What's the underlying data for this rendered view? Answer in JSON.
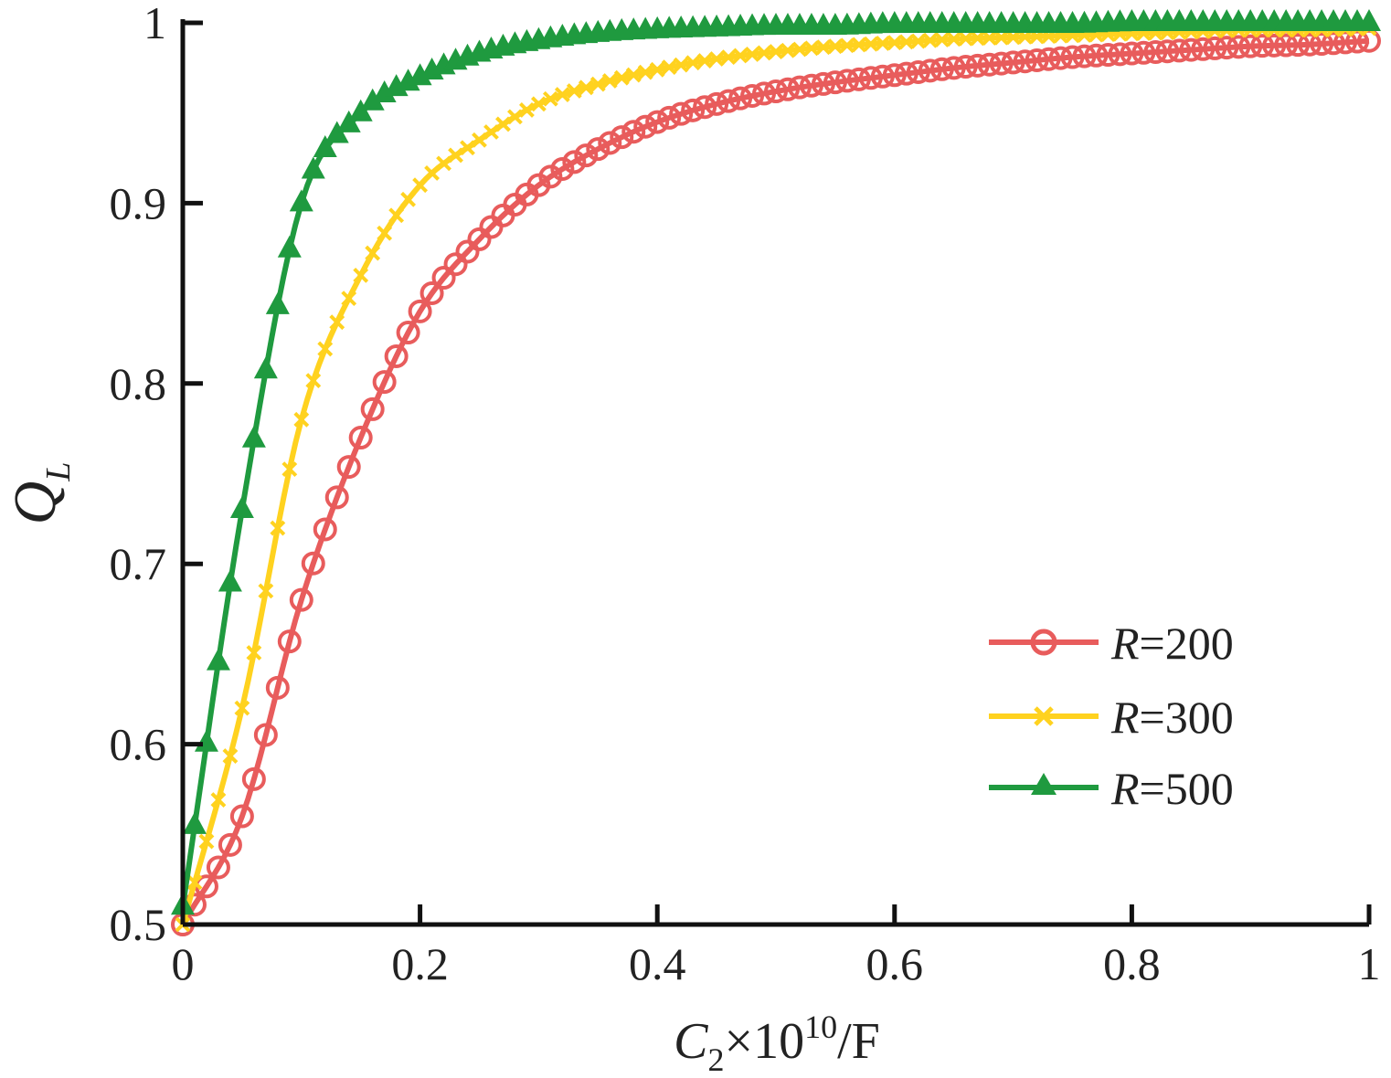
{
  "chart_data": {
    "type": "line",
    "xlabel": {
      "base": "C",
      "sub": "2",
      "mid": "×10",
      "sup": "10",
      "tail": "/F"
    },
    "ylabel": {
      "base": "Q",
      "sub": "L"
    },
    "xlim": [
      0,
      1
    ],
    "ylim": [
      0.5,
      1
    ],
    "xticks": [
      0,
      0.2,
      0.4,
      0.6,
      0.8,
      1
    ],
    "xtick_labels": [
      "0",
      "0.2",
      "0.4",
      "0.6",
      "0.8",
      "1"
    ],
    "yticks": [
      0.5,
      0.6,
      0.7,
      0.8,
      0.9,
      1
    ],
    "ytick_labels": [
      "0.5",
      "0.6",
      "0.7",
      "0.8",
      "0.9",
      "1"
    ],
    "grid": false,
    "legend_position": "lower-right",
    "series": [
      {
        "name": "R=200",
        "label_italic": "R",
        "label_rest": "=200",
        "color": "#e85c5c",
        "marker": "circle",
        "x": [
          0.0,
          0.05,
          0.1,
          0.15,
          0.2,
          0.25,
          0.3,
          0.35,
          0.4,
          0.45,
          0.5,
          0.55,
          0.6,
          0.65,
          0.7,
          0.75,
          0.8,
          0.85,
          0.9,
          0.95,
          1.0
        ],
        "y": [
          0.5,
          0.56,
          0.68,
          0.77,
          0.84,
          0.88,
          0.91,
          0.93,
          0.945,
          0.955,
          0.962,
          0.967,
          0.971,
          0.975,
          0.978,
          0.981,
          0.983,
          0.985,
          0.987,
          0.988,
          0.99
        ]
      },
      {
        "name": "R=300",
        "label_italic": "R",
        "label_rest": "=300",
        "color": "#ffd21f",
        "marker": "x",
        "x": [
          0.0,
          0.05,
          0.1,
          0.15,
          0.2,
          0.25,
          0.3,
          0.35,
          0.4,
          0.45,
          0.5,
          0.55,
          0.6,
          0.65,
          0.7,
          0.75,
          0.8,
          0.85,
          0.9,
          0.95,
          1.0
        ],
        "y": [
          0.5,
          0.62,
          0.78,
          0.86,
          0.91,
          0.935,
          0.955,
          0.966,
          0.974,
          0.98,
          0.984,
          0.987,
          0.989,
          0.991,
          0.992,
          0.993,
          0.994,
          0.995,
          0.996,
          0.996,
          0.997
        ]
      },
      {
        "name": "R=500",
        "label_italic": "R",
        "label_rest": "=500",
        "color": "#1f9a3f",
        "marker": "triangle",
        "x": [
          0.0,
          0.05,
          0.1,
          0.15,
          0.2,
          0.25,
          0.3,
          0.35,
          0.4,
          0.45,
          0.5,
          0.55,
          0.6,
          0.65,
          0.7,
          0.75,
          0.8,
          0.85,
          0.9,
          0.95,
          1.0
        ],
        "y": [
          0.51,
          0.73,
          0.9,
          0.95,
          0.97,
          0.983,
          0.99,
          0.994,
          0.996,
          0.997,
          0.998,
          0.998,
          0.999,
          0.999,
          0.999,
          0.999,
          1.0,
          1.0,
          1.0,
          1.0,
          1.0
        ]
      }
    ]
  }
}
